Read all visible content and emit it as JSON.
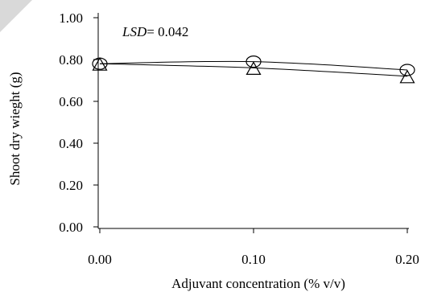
{
  "chart_data": {
    "type": "line",
    "xlabel": "Adjuvant concentration (% v/v)",
    "ylabel": "Shoot dry wieght (g)",
    "x": [
      0.0,
      0.1,
      0.2
    ],
    "xticks": [
      "0.00",
      "0.10",
      "0.20"
    ],
    "xlim": [
      0.0,
      0.2
    ],
    "yticks": [
      "0.00",
      "0.20",
      "0.40",
      "0.60",
      "0.80",
      "1.00"
    ],
    "ylim": [
      0.0,
      1.0
    ],
    "grid": false,
    "annotation": {
      "label": "LSD",
      "text": "= 0.042"
    },
    "series": [
      {
        "marker": "circle",
        "values": [
          0.78,
          0.79,
          0.75
        ]
      },
      {
        "marker": "triangle",
        "values": [
          0.78,
          0.76,
          0.72
        ]
      }
    ]
  }
}
